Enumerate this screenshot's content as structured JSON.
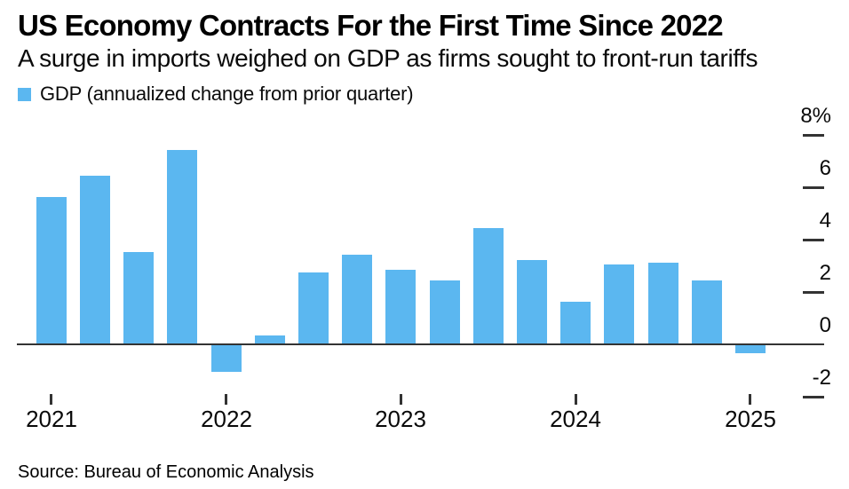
{
  "header": {
    "title": "US Economy Contracts For the First Time Since 2022",
    "subtitle": "A surge in imports weighed on GDP as firms sought to front-run tariffs"
  },
  "legend": {
    "label": "GDP (annualized change from prior quarter)",
    "swatch_color": "#5BB7F0"
  },
  "chart_data": {
    "type": "bar",
    "title": "US Economy Contracts For the First Time Since 2022",
    "subtitle": "A surge in imports weighed on GDP as firms sought to front-run tariffs",
    "x": [
      "2021 Q1",
      "2021 Q2",
      "2021 Q3",
      "2021 Q4",
      "2022 Q1",
      "2022 Q2",
      "2022 Q3",
      "2022 Q4",
      "2023 Q1",
      "2023 Q2",
      "2023 Q3",
      "2023 Q4",
      "2024 Q1",
      "2024 Q2",
      "2024 Q3",
      "2024 Q4",
      "2025 Q1"
    ],
    "series": [
      {
        "name": "GDP (annualized change from prior quarter)",
        "values": [
          5.6,
          6.4,
          3.5,
          7.4,
          -1.0,
          0.3,
          2.7,
          3.4,
          2.8,
          2.4,
          4.4,
          3.2,
          1.6,
          3.0,
          3.1,
          2.4,
          -0.3
        ]
      }
    ],
    "x_tick_labels": [
      "2021",
      "2022",
      "2023",
      "2024",
      "2025"
    ],
    "x_tick_indices": [
      0,
      4,
      8,
      12,
      16
    ],
    "y_tick_labels": [
      "8%",
      "6",
      "4",
      "2",
      "0",
      "-2"
    ],
    "y_tick_values": [
      8,
      6,
      4,
      2,
      0,
      -2
    ],
    "ylim": [
      -2.6,
      8
    ],
    "ylabel": "",
    "xlabel": "",
    "grid": "zero-baseline-only",
    "legend_position": "top-left",
    "bar_color": "#5BB7F0",
    "axis_color": "#333333"
  },
  "footer": {
    "source": "Source: Bureau of Economic Analysis"
  }
}
